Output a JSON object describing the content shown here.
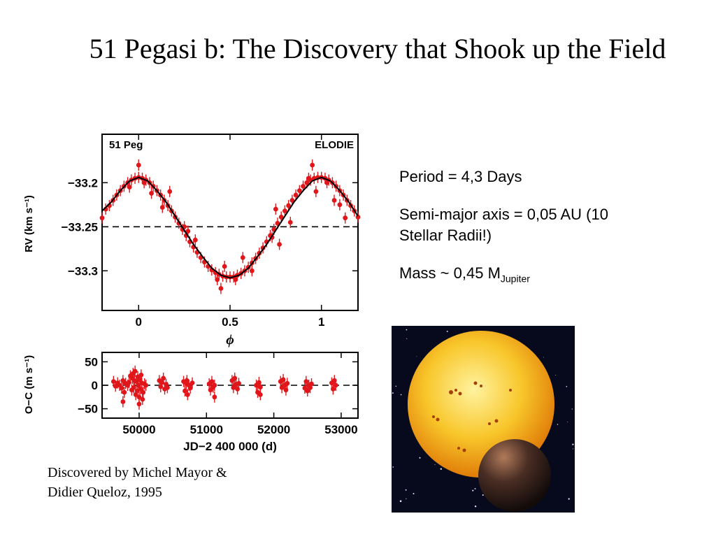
{
  "slide": {
    "title": "51 Pegasi b: The Discovery that Shook up the Field",
    "facts": {
      "period": "Period = 4,3 Days",
      "axis_line1": "Semi-major axis =  0,05 AU (10",
      "axis_line2": "Stellar Radii!)",
      "mass_prefix": "Mass ~ 0,45 M",
      "mass_sub": "Jupiter"
    },
    "credit_line1": "Discovered by  Michel Mayor &",
    "credit_line2": "Didier Queloz, 1995",
    "figure": {
      "star_label": "51  Peg",
      "instrument_label": "ELODIE",
      "top_ylabel": "RV  (km s⁻¹)",
      "top_xlabel": "ϕ",
      "bottom_ylabel": "O−C  (m s⁻¹)",
      "bottom_xlabel": "JD−2 400 000  (d)"
    },
    "artwork": {
      "star_color": "#f6b21a",
      "planet_color": "#5a3a2c",
      "space_color": "#070a1c"
    }
  },
  "chart_data": [
    {
      "type": "scatter",
      "title": "",
      "xlabel": "ϕ",
      "ylabel": "RV  (km s⁻¹)",
      "xlim": [
        -0.2,
        1.2
      ],
      "ylim": [
        -33.345,
        -33.145
      ],
      "xticks": [
        0,
        0.5,
        1
      ],
      "xtick_labels": [
        "0",
        "0.5",
        "1"
      ],
      "yticks": [
        -33.2,
        -33.25,
        -33.3
      ],
      "ytick_labels": [
        "−33.2",
        "−33.25",
        "−33.3"
      ],
      "reference_line": -33.25,
      "color": "#e0161b",
      "series": [
        {
          "kind": "points",
          "x": [
            -0.2,
            -0.18,
            -0.16,
            -0.14,
            -0.12,
            -0.1,
            -0.08,
            -0.06,
            -0.04,
            -0.02,
            0.0,
            0.02,
            0.04,
            0.06,
            0.08,
            0.1,
            0.12,
            0.14,
            0.16,
            0.18,
            0.2,
            0.22,
            0.24,
            0.26,
            0.28,
            0.3,
            0.32,
            0.34,
            0.36,
            0.38,
            0.4,
            0.42,
            0.44,
            0.46,
            0.48,
            0.5,
            0.52,
            0.54,
            0.56,
            0.58,
            0.6,
            0.62,
            0.64,
            0.66,
            0.68,
            0.7,
            0.72,
            0.74,
            0.76,
            0.78,
            0.8,
            0.82,
            0.84,
            0.86,
            0.88,
            0.9,
            0.92,
            0.94,
            0.96,
            0.98,
            1.0,
            1.02,
            1.04,
            1.06,
            1.08,
            1.1,
            1.12,
            1.14,
            1.16,
            1.18,
            1.2,
            -0.05,
            0.03,
            0.07,
            0.13,
            0.17,
            0.27,
            0.31,
            0.43,
            0.47,
            0.53,
            0.57,
            0.73,
            0.77,
            0.83,
            0.93,
            0.97,
            1.03,
            1.07,
            1.13,
            0.0,
            0.25,
            0.45,
            0.62,
            0.75,
            0.95,
            1.1
          ],
          "y": [
            -33.24,
            -33.23,
            -33.226,
            -33.22,
            -33.214,
            -33.209,
            -33.204,
            -33.2,
            -33.197,
            -33.195,
            -33.194,
            -33.195,
            -33.197,
            -33.2,
            -33.204,
            -33.209,
            -33.214,
            -33.22,
            -33.226,
            -33.232,
            -33.239,
            -33.246,
            -33.253,
            -33.26,
            -33.267,
            -33.273,
            -33.279,
            -33.285,
            -33.29,
            -33.295,
            -33.299,
            -33.302,
            -33.304,
            -33.306,
            -33.307,
            -33.307,
            -33.307,
            -33.305,
            -33.303,
            -33.3,
            -33.296,
            -33.291,
            -33.286,
            -33.28,
            -33.274,
            -33.267,
            -33.26,
            -33.253,
            -33.246,
            -33.239,
            -33.232,
            -33.226,
            -33.22,
            -33.214,
            -33.209,
            -33.204,
            -33.2,
            -33.197,
            -33.195,
            -33.194,
            -33.194,
            -33.195,
            -33.197,
            -33.2,
            -33.204,
            -33.209,
            -33.214,
            -33.22,
            -33.226,
            -33.232,
            -33.239,
            -33.205,
            -33.2,
            -33.212,
            -33.228,
            -33.21,
            -33.255,
            -33.265,
            -33.31,
            -33.295,
            -33.31,
            -33.285,
            -33.262,
            -33.27,
            -33.245,
            -33.195,
            -33.21,
            -33.2,
            -33.22,
            -33.24,
            -33.18,
            -33.25,
            -33.32,
            -33.3,
            -33.23,
            -33.18,
            -33.225
          ]
        },
        {
          "kind": "curve",
          "x": [
            -0.2,
            -0.15,
            -0.1,
            -0.05,
            0.0,
            0.05,
            0.1,
            0.15,
            0.2,
            0.25,
            0.3,
            0.35,
            0.4,
            0.45,
            0.5,
            0.55,
            0.6,
            0.65,
            0.7,
            0.75,
            0.8,
            0.85,
            0.9,
            0.95,
            1.0,
            1.05,
            1.1,
            1.15,
            1.2
          ],
          "y": [
            -33.232,
            -33.222,
            -33.209,
            -33.198,
            -33.194,
            -33.198,
            -33.209,
            -33.222,
            -33.238,
            -33.254,
            -33.27,
            -33.284,
            -33.297,
            -33.305,
            -33.308,
            -33.305,
            -33.297,
            -33.284,
            -33.27,
            -33.254,
            -33.238,
            -33.222,
            -33.209,
            -33.198,
            -33.194,
            -33.198,
            -33.209,
            -33.222,
            -33.238
          ]
        }
      ]
    },
    {
      "type": "scatter",
      "title": "",
      "xlabel": "JD−2 400 000  (d)",
      "ylabel": "O−C  (m s⁻¹)",
      "xlim": [
        49450,
        53250
      ],
      "ylim": [
        -70,
        70
      ],
      "xticks": [
        50000,
        51000,
        52000,
        53000
      ],
      "xtick_labels": [
        "50000",
        "51000",
        "52000",
        "53000"
      ],
      "yticks": [
        50,
        0,
        -50
      ],
      "ytick_labels": [
        "50",
        "0",
        "−50"
      ],
      "reference_line": 0,
      "color": "#e0161b",
      "series": [
        {
          "kind": "points",
          "x": [
            49620,
            49650,
            49680,
            49710,
            49740,
            49760,
            49780,
            49800,
            49830,
            49850,
            49870,
            49890,
            49900,
            49910,
            49920,
            49930,
            49940,
            49950,
            49960,
            49970,
            49980,
            49990,
            50000,
            50010,
            50020,
            50030,
            50040,
            50060,
            50080,
            50100,
            50300,
            50320,
            50340,
            50360,
            50380,
            50400,
            50420,
            50660,
            50680,
            50700,
            50710,
            50720,
            50740,
            50760,
            50790,
            51040,
            51060,
            51080,
            51100,
            51120,
            51380,
            51400,
            51420,
            51440,
            51460,
            51480,
            51740,
            51760,
            51780,
            51800,
            52100,
            52120,
            52140,
            52160,
            52180,
            52200,
            52460,
            52480,
            52500,
            52520,
            52540,
            52560,
            52860,
            52880,
            52900,
            52920,
            49760,
            50000,
            50050,
            51120,
            51800
          ],
          "y": [
            8,
            -2,
            5,
            0,
            -6,
            10,
            -15,
            4,
            0,
            6,
            20,
            -10,
            15,
            25,
            -5,
            10,
            30,
            -20,
            8,
            -12,
            18,
            0,
            -25,
            12,
            -8,
            22,
            5,
            -15,
            3,
            0,
            10,
            -3,
            6,
            15,
            -8,
            2,
            -5,
            8,
            -12,
            4,
            10,
            -20,
            0,
            -6,
            5,
            3,
            -10,
            8,
            -4,
            0,
            10,
            -5,
            15,
            2,
            -8,
            4,
            0,
            -15,
            6,
            -4,
            8,
            -5,
            12,
            0,
            -10,
            4,
            -6,
            8,
            -12,
            0,
            -5,
            3,
            5,
            -8,
            10,
            0,
            -35,
            -40,
            -30,
            -25,
            -20
          ]
        }
      ]
    }
  ]
}
